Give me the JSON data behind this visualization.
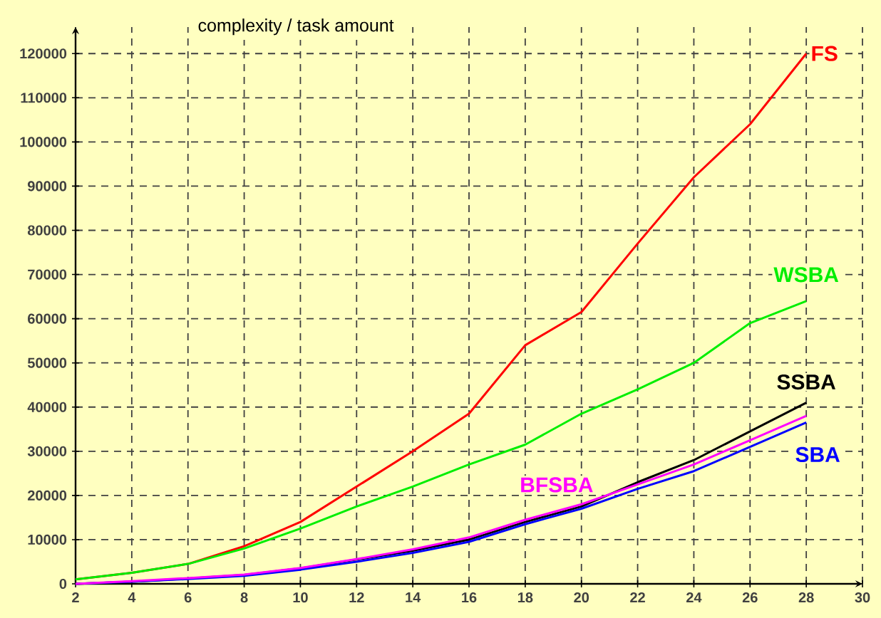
{
  "chart_data": {
    "type": "line",
    "title": "complexity / task amount",
    "x": [
      2,
      4,
      6,
      8,
      10,
      12,
      14,
      16,
      18,
      20,
      22,
      24,
      26,
      28
    ],
    "series": [
      {
        "name": "FS",
        "color": "#ff0000",
        "values": [
          1000,
          2500,
          4500,
          8500,
          14000,
          22000,
          30000,
          38500,
          54000,
          61500,
          77000,
          92000,
          104000,
          120000
        ]
      },
      {
        "name": "WSBA",
        "color": "#00ee00",
        "values": [
          1000,
          2500,
          4500,
          8000,
          12500,
          17500,
          22000,
          27000,
          31500,
          38500,
          44000,
          50000,
          59000,
          64000
        ]
      },
      {
        "name": "SSBA",
        "color": "#000000",
        "values": [
          0,
          500,
          1200,
          2000,
          3500,
          5500,
          7500,
          10000,
          14000,
          17500,
          23000,
          28000,
          34500,
          41000
        ]
      },
      {
        "name": "SBA",
        "color": "#0000ff",
        "values": [
          0,
          500,
          1100,
          1800,
          3200,
          5000,
          7000,
          9500,
          13500,
          17000,
          21500,
          25500,
          31000,
          36500
        ]
      },
      {
        "name": "BFSBA",
        "color": "#ff00ff",
        "values": [
          0,
          600,
          1300,
          2100,
          3600,
          5600,
          7800,
          10500,
          14500,
          18000,
          22500,
          27000,
          32500,
          38000
        ]
      }
    ],
    "xlim": [
      2,
      30
    ],
    "ylim": [
      0,
      126000
    ],
    "xticks": [
      2,
      4,
      6,
      8,
      10,
      12,
      14,
      16,
      18,
      20,
      22,
      24,
      26,
      28,
      30
    ],
    "yticks": [
      0,
      10000,
      20000,
      30000,
      40000,
      50000,
      60000,
      70000,
      80000,
      90000,
      100000,
      110000,
      120000
    ],
    "grid": true,
    "marker": "none",
    "line_style": "solid"
  }
}
